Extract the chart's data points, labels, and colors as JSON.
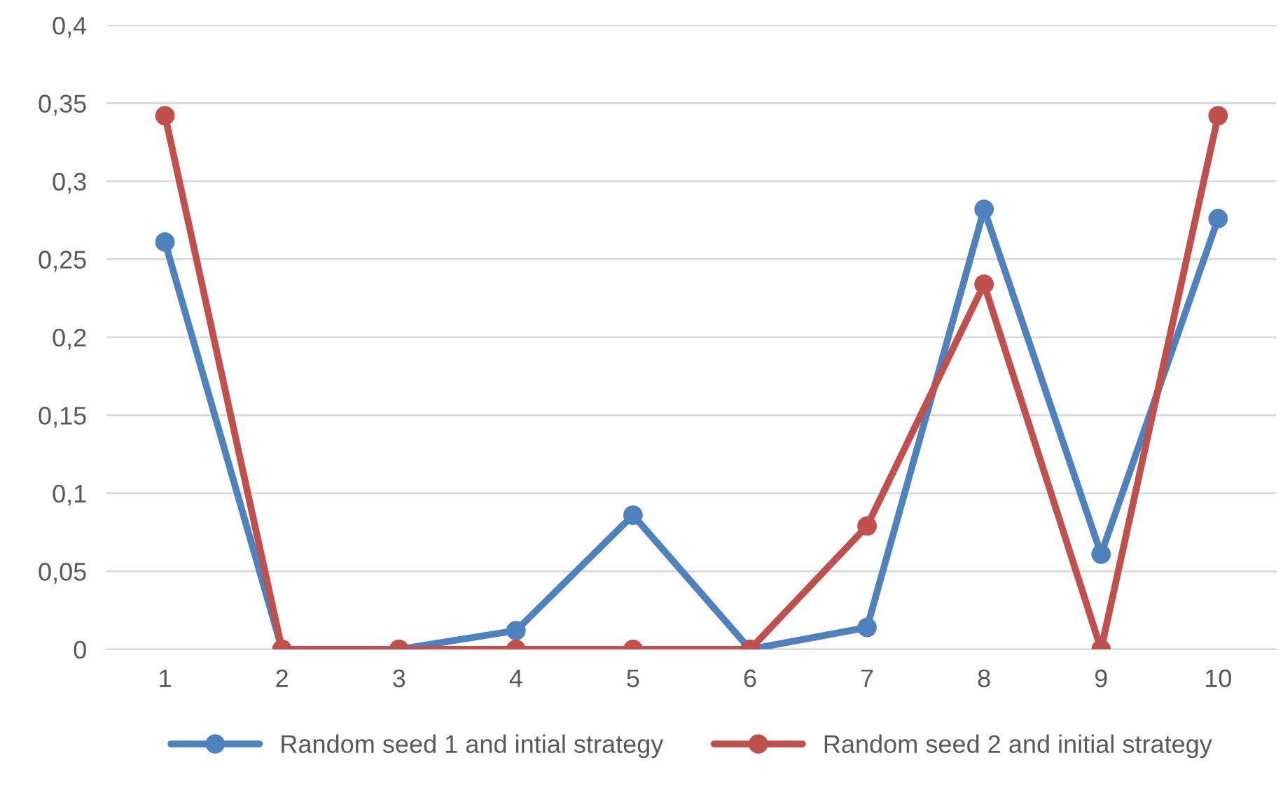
{
  "chart_data": {
    "type": "line",
    "categories": [
      "1",
      "2",
      "3",
      "4",
      "5",
      "6",
      "7",
      "8",
      "9",
      "10"
    ],
    "series": [
      {
        "name": "Random seed 1 and intial strategy",
        "color": "#4f81bd",
        "values": [
          0.261,
          0,
          0,
          0.012,
          0.086,
          0,
          0.014,
          0.282,
          0.061,
          0.276
        ]
      },
      {
        "name": "Random seed 2 and initial strategy",
        "color": "#c0504d",
        "values": [
          0.342,
          0,
          0,
          0,
          0,
          0,
          0.079,
          0.234,
          0,
          0.342
        ]
      }
    ],
    "ylim": [
      0,
      0.4
    ],
    "yticks": [
      0,
      {
        "value": 0.05,
        "label": "0,05"
      },
      {
        "value": 0.1,
        "label": "0,1"
      },
      {
        "value": 0.15,
        "label": "0,15"
      },
      {
        "value": 0.2,
        "label": "0,2"
      },
      {
        "value": 0.25,
        "label": "0,25"
      },
      {
        "value": 0.3,
        "label": "0,3"
      },
      {
        "value": 0.35,
        "label": "0,35"
      },
      {
        "value": 0.4,
        "label": "0,4"
      }
    ],
    "grid": "y",
    "legend": "bottom",
    "marker": "circle",
    "line_style": "solid"
  }
}
